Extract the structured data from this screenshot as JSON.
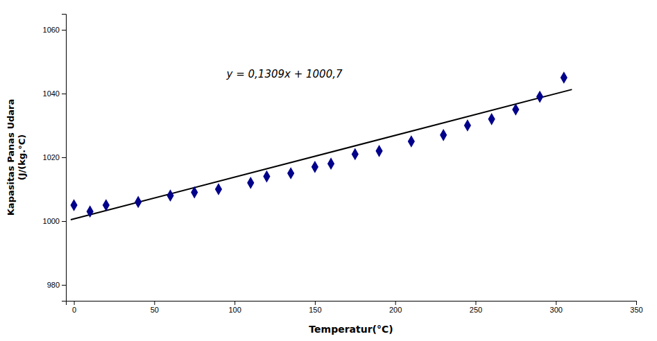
{
  "chart_data": {
    "type": "scatter",
    "x_label": "Temperatur(°C)",
    "y_label": "Kapasitas Panas Udara\n(J/(kg.°C)",
    "series": [
      {
        "type": "scatter",
        "color": "#00008B",
        "marker": "diamond",
        "x": [
          0,
          10,
          20,
          40,
          60,
          75,
          90,
          110,
          120,
          135,
          150,
          160,
          175,
          190,
          210,
          230,
          245,
          260,
          275,
          290,
          305
        ],
        "values": [
          1005,
          1003,
          1005,
          1006,
          1008,
          1009,
          1010,
          1012,
          1014,
          1015,
          1017,
          1018,
          1021,
          1022,
          1025,
          1027,
          1030,
          1032,
          1035,
          1039,
          1045
        ]
      },
      {
        "type": "line",
        "color": "#000000",
        "x": [
          -2,
          310
        ],
        "values": [
          1000.4382,
          1041.279
        ]
      }
    ],
    "annotations": [
      {
        "text": "y = 0,1309x + 1000,7",
        "x": 95,
        "y": 1048
      }
    ],
    "xlim": [
      -5,
      350
    ],
    "ylim": [
      975,
      1065
    ],
    "xticks": [
      0,
      50,
      100,
      150,
      200,
      250,
      300,
      350
    ],
    "yticks": [
      980,
      1000,
      1020,
      1040,
      1060
    ],
    "grid": false
  }
}
